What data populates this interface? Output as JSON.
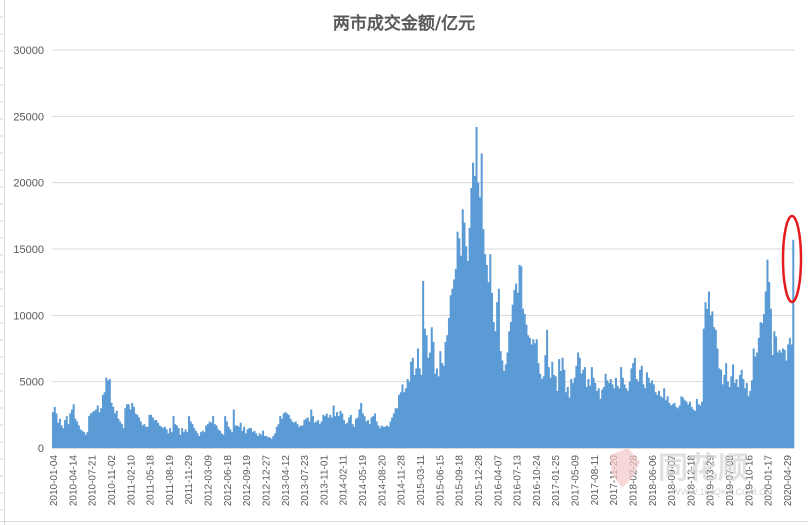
{
  "chart_data": {
    "type": "bar",
    "title": "两市成交金额/亿元",
    "xlabel": "",
    "ylabel": "",
    "ylim": [
      0,
      30000
    ],
    "yticks": [
      0,
      5000,
      10000,
      15000,
      20000,
      25000,
      30000
    ],
    "grid": true,
    "legend": "none",
    "bar_color": "#5b9bd5",
    "annotation": {
      "shape": "ellipse",
      "color": "#ff0000",
      "target": "latest bar (~15700)"
    },
    "categories": [
      "2010-01-04",
      "2010-04-14",
      "2010-07-21",
      "2010-11-02",
      "2011-02-10",
      "2011-05-18",
      "2011-08-19",
      "2011-11-29",
      "2012-03-09",
      "2012-06-18",
      "2012-09-19",
      "2012-12-27",
      "2013-04-12",
      "2013-07-23",
      "2013-11-01",
      "2014-02-11",
      "2014-05-19",
      "2014-08-20",
      "2014-11-28",
      "2015-03-11",
      "2015-06-15",
      "2015-09-18",
      "2015-12-28",
      "2016-04-07",
      "2016-07-13",
      "2016-10-24",
      "2017-01-25",
      "2017-05-09",
      "2017-08-11",
      "2017-11-20",
      "2018-02-28",
      "2018-06-06",
      "2018-09-07",
      "2018-12-18",
      "2019-03-29",
      "2019-07-08",
      "2019-10-16",
      "2020-01-17",
      "2020-04-29"
    ],
    "series": [
      {
        "name": "两市成交金额",
        "values": [
          2700,
          3100,
          2600,
          1900,
          2200,
          1700,
          1500,
          2100,
          2400,
          1800,
          2600,
          2900,
          3300,
          2200,
          2000,
          1700,
          1400,
          1300,
          1200,
          1000,
          1200,
          2400,
          2600,
          2700,
          2800,
          2900,
          3200,
          2700,
          3000,
          4000,
          4200,
          5300,
          5100,
          5200,
          3400,
          3100,
          2600,
          2800,
          2200,
          2000,
          1800,
          1500,
          3000,
          3300,
          3300,
          2900,
          3400,
          3100,
          2600,
          2500,
          2300,
          2000,
          1700,
          1800,
          1600,
          1600,
          2500,
          2500,
          2300,
          2100,
          2100,
          1900,
          1700,
          1600,
          1500,
          1600,
          1400,
          1100,
          1500,
          1200,
          2400,
          1800,
          1700,
          1500,
          1000,
          1500,
          1200,
          1400,
          1200,
          2400,
          2000,
          1800,
          1500,
          1300,
          1100,
          900,
          1200,
          1300,
          1200,
          1700,
          1800,
          2000,
          1900,
          2400,
          1800,
          1700,
          1400,
          1300,
          1100,
          1000,
          2400,
          2000,
          1600,
          1400,
          1200,
          2900,
          1700,
          1700,
          1600,
          1900,
          1300,
          1600,
          1100,
          1400,
          1500,
          1500,
          1200,
          1300,
          1100,
          900,
          1100,
          1000,
          1300,
          900,
          900,
          800,
          800,
          700,
          900,
          1100,
          1600,
          1800,
          2400,
          2200,
          2600,
          2700,
          2600,
          2500,
          2200,
          2000,
          1900,
          2000,
          1800,
          1600,
          1700,
          1700,
          2100,
          2200,
          2300,
          2000,
          2900,
          2400,
          1900,
          2000,
          2100,
          1800,
          2000,
          2500,
          2400,
          2600,
          2300,
          2500,
          2300,
          3200,
          2400,
          2700,
          2400,
          2800,
          2600,
          2100,
          1800,
          1900,
          2300,
          2500,
          1800,
          1600,
          2200,
          2300,
          2900,
          3400,
          2600,
          2400,
          2000,
          2100,
          1800,
          2300,
          2400,
          2600,
          2000,
          1700,
          1500,
          1700,
          1600,
          1600,
          1700,
          1600,
          2000,
          2300,
          2600,
          3000,
          3000,
          4000,
          4200,
          4800,
          4200,
          4500,
          5200,
          5000,
          6500,
          6800,
          5500,
          6000,
          7500,
          6000,
          5500,
          12600,
          9000,
          8500,
          6800,
          7200,
          9100,
          8000,
          5600,
          6000,
          5400,
          7300,
          6400,
          6200,
          8000,
          8500,
          9800,
          11500,
          12000,
          12700,
          13500,
          16300,
          15800,
          14500,
          18000,
          17000,
          15200,
          14100,
          16600,
          19600,
          21500,
          20500,
          24200,
          20000,
          18900,
          22200,
          16500,
          14600,
          13800,
          12500,
          14600,
          11700,
          9500,
          8800,
          11000,
          12000,
          7300,
          6600,
          5800,
          6300,
          7200,
          8800,
          9500,
          10800,
          11900,
          12400,
          11700,
          13800,
          13700,
          10500,
          10100,
          9300,
          8500,
          8300,
          7800,
          8200,
          7900,
          8200,
          6400,
          5600,
          5200,
          5400,
          7000,
          8900,
          6100,
          5300,
          6500,
          5500,
          5400,
          4300,
          6700,
          5800,
          6800,
          5900,
          4200,
          4600,
          3800,
          5200,
          4900,
          5300,
          6200,
          7200,
          6800,
          5600,
          5900,
          6100,
          4600,
          5200,
          4700,
          6100,
          5300,
          4900,
          4300,
          4500,
          3700,
          4400,
          4600,
          5600,
          5100,
          4900,
          5200,
          4800,
          4500,
          5300,
          4700,
          4500,
          6100,
          5300,
          4800,
          4500,
          4300,
          5000,
          6000,
          6400,
          6800,
          5200,
          5000,
          5900,
          6200,
          4800,
          4500,
          5700,
          5300,
          4900,
          5100,
          4800,
          4200,
          4000,
          4300,
          3900,
          3800,
          4500,
          3600,
          3900,
          3400,
          3200,
          3300,
          3400,
          3100,
          3000,
          3200,
          3900,
          3800,
          3600,
          3500,
          3300,
          3500,
          3100,
          2900,
          2800,
          3700,
          3300,
          3200,
          3500,
          9000,
          11000,
          10500,
          11800,
          10000,
          10300,
          9100,
          8900,
          7500,
          6000,
          5900,
          4800,
          5500,
          6400,
          5000,
          4600,
          5400,
          6300,
          4900,
          5200,
          4600,
          5500,
          5900,
          5200,
          4500,
          4900,
          3900,
          4300,
          5100,
          7500,
          6900,
          7200,
          8300,
          9500,
          9400,
          10100,
          11800,
          14200,
          12500,
          10500,
          7000,
          8800,
          8400,
          7200,
          7400,
          7200,
          7500,
          7400,
          6600,
          7800,
          8300,
          7800,
          15700
        ]
      }
    ]
  },
  "watermark": {
    "logo_text": "同花顺",
    "url_text": "WWW.10JQKA.COM.CN"
  }
}
